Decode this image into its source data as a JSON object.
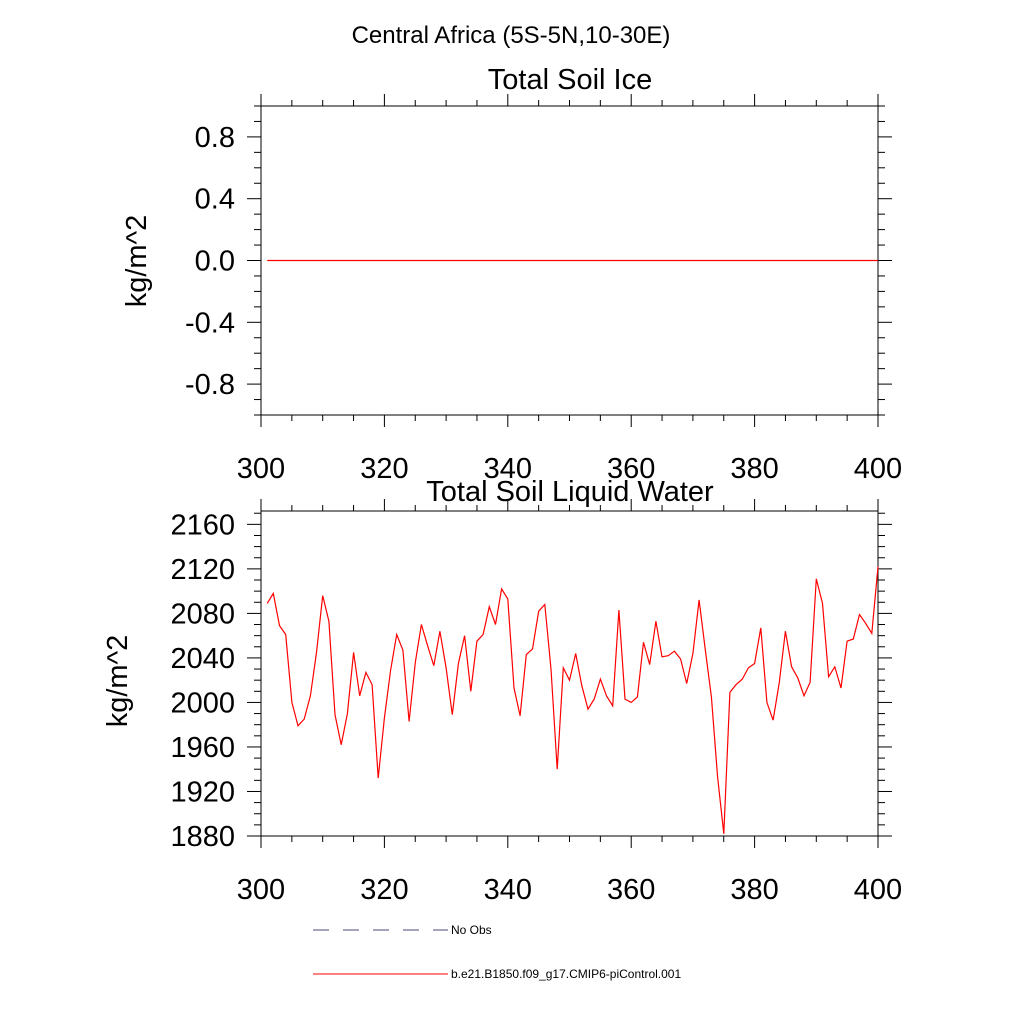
{
  "figure_title": "Central Africa (5S-5N,10-30E)",
  "legend": [
    {
      "label": "No Obs",
      "color": "#4a4a7a",
      "style": "dashed"
    },
    {
      "label": "b.e21.B1850.f09_g17.CMIP6-piControl.001",
      "color": "#ff0000",
      "style": "solid"
    }
  ],
  "chart_data": [
    {
      "type": "line",
      "title": "Total Soil Ice",
      "ylabel": "kg/m^2",
      "xlabel": "",
      "xlim": [
        300,
        400
      ],
      "ylim": [
        -1.0,
        1.0
      ],
      "x_ticks": [
        300,
        320,
        340,
        360,
        380,
        400
      ],
      "x_tick_labels": [
        "300",
        "320",
        "340",
        "360",
        "380",
        "400"
      ],
      "y_ticks": [
        -0.8,
        -0.4,
        0.0,
        0.4,
        0.8
      ],
      "y_tick_labels": [
        "-0.8",
        "-0.4",
        "0.0",
        "0.4",
        "0.8"
      ],
      "grid": false,
      "series": [
        {
          "name": "b.e21.B1850.f09_g17.CMIP6-piControl.001",
          "color": "#ff0000",
          "x": [
            301,
            400
          ],
          "values": [
            0,
            0
          ]
        }
      ]
    },
    {
      "type": "line",
      "title": "Total Soil Liquid Water",
      "ylabel": "kg/m^2",
      "xlabel": "",
      "xlim": [
        300,
        400
      ],
      "ylim": [
        1880,
        2172
      ],
      "x_ticks": [
        300,
        320,
        340,
        360,
        380,
        400
      ],
      "x_tick_labels": [
        "300",
        "320",
        "340",
        "360",
        "380",
        "400"
      ],
      "y_ticks": [
        1880,
        1920,
        1960,
        2000,
        2040,
        2080,
        2120,
        2160
      ],
      "y_tick_labels": [
        "1880",
        "1920",
        "1960",
        "2000",
        "2040",
        "2080",
        "2120",
        "2160"
      ],
      "grid": false,
      "series": [
        {
          "name": "b.e21.B1850.f09_g17.CMIP6-piControl.001",
          "color": "#ff0000",
          "x_start": 301,
          "values": [
            2089,
            2098,
            2069,
            2061,
            2000,
            1979,
            1985,
            2006,
            2045,
            2096,
            2073,
            1989,
            1962,
            1990,
            2045,
            2006,
            2027,
            2016,
            1932,
            1986,
            2029,
            2061,
            2047,
            1983,
            2036,
            2070,
            2051,
            2033,
            2064,
            2031,
            1989,
            2035,
            2060,
            2010,
            2055,
            2061,
            2086,
            2070,
            2102,
            2093,
            2013,
            1988,
            2043,
            2048,
            2082,
            2088,
            2030,
            1940,
            2031,
            2020,
            2044,
            2015,
            1994,
            2003,
            2021,
            2006,
            1997,
            2083,
            2003,
            2000,
            2005,
            2054,
            2034,
            2073,
            2041,
            2042,
            2046,
            2039,
            2017,
            2044,
            2092,
            2048,
            2005,
            1933,
            1882,
            2009,
            2016,
            2021,
            2031,
            2035,
            2067,
            2000,
            1984,
            2018,
            2064,
            2032,
            2022,
            2006,
            2018,
            2111,
            2089,
            2023,
            2032,
            2013,
            2055,
            2057,
            2079,
            2071,
            2062,
            2122
          ]
        }
      ]
    }
  ]
}
